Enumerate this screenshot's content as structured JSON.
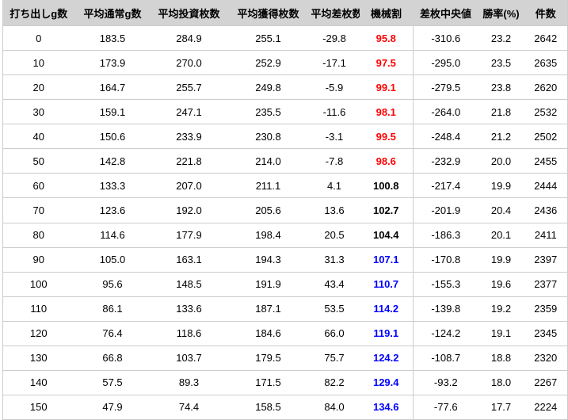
{
  "chart_data": {
    "type": "table",
    "title": "",
    "columns": [
      "打ち出しg数",
      "平均通常g数",
      "平均投資枚数",
      "平均獲得枚数",
      "平均差枚数",
      "機械割",
      "差枚中央値",
      "勝率(%)",
      "件数"
    ],
    "column_keys": [
      "g-start",
      "avg-normal-g",
      "avg-invest-coins",
      "avg-payout-coins",
      "avg-diff-coins",
      "kikaiwari",
      "diff-median",
      "win-rate",
      "count"
    ],
    "rows": [
      {
        "cells": [
          "0",
          "183.5",
          "284.9",
          "255.1",
          "-29.8",
          "95.8",
          "-310.6",
          "23.2",
          "2642"
        ],
        "kikaiwari_color": "red"
      },
      {
        "cells": [
          "10",
          "173.9",
          "270.0",
          "252.9",
          "-17.1",
          "97.5",
          "-295.0",
          "23.5",
          "2635"
        ],
        "kikaiwari_color": "red"
      },
      {
        "cells": [
          "20",
          "164.7",
          "255.7",
          "249.8",
          "-5.9",
          "99.1",
          "-279.5",
          "23.8",
          "2620"
        ],
        "kikaiwari_color": "red"
      },
      {
        "cells": [
          "30",
          "159.1",
          "247.1",
          "235.5",
          "-11.6",
          "98.1",
          "-264.0",
          "21.8",
          "2532"
        ],
        "kikaiwari_color": "red"
      },
      {
        "cells": [
          "40",
          "150.6",
          "233.9",
          "230.8",
          "-3.1",
          "99.5",
          "-248.4",
          "21.2",
          "2502"
        ],
        "kikaiwari_color": "red"
      },
      {
        "cells": [
          "50",
          "142.8",
          "221.8",
          "214.0",
          "-7.8",
          "98.6",
          "-232.9",
          "20.0",
          "2455"
        ],
        "kikaiwari_color": "red"
      },
      {
        "cells": [
          "60",
          "133.3",
          "207.0",
          "211.1",
          "4.1",
          "100.8",
          "-217.4",
          "19.9",
          "2444"
        ],
        "kikaiwari_color": "black"
      },
      {
        "cells": [
          "70",
          "123.6",
          "192.0",
          "205.6",
          "13.6",
          "102.7",
          "-201.9",
          "20.4",
          "2436"
        ],
        "kikaiwari_color": "black"
      },
      {
        "cells": [
          "80",
          "114.6",
          "177.9",
          "198.4",
          "20.5",
          "104.4",
          "-186.3",
          "20.1",
          "2411"
        ],
        "kikaiwari_color": "black"
      },
      {
        "cells": [
          "90",
          "105.0",
          "163.1",
          "194.3",
          "31.3",
          "107.1",
          "-170.8",
          "19.9",
          "2397"
        ],
        "kikaiwari_color": "blue"
      },
      {
        "cells": [
          "100",
          "95.6",
          "148.5",
          "191.9",
          "43.4",
          "110.7",
          "-155.3",
          "19.6",
          "2377"
        ],
        "kikaiwari_color": "blue"
      },
      {
        "cells": [
          "110",
          "86.1",
          "133.6",
          "187.1",
          "53.5",
          "114.2",
          "-139.8",
          "19.2",
          "2359"
        ],
        "kikaiwari_color": "blue"
      },
      {
        "cells": [
          "120",
          "76.4",
          "118.6",
          "184.6",
          "66.0",
          "119.1",
          "-124.2",
          "19.1",
          "2345"
        ],
        "kikaiwari_color": "blue"
      },
      {
        "cells": [
          "130",
          "66.8",
          "103.7",
          "179.5",
          "75.7",
          "124.2",
          "-108.7",
          "18.8",
          "2320"
        ],
        "kikaiwari_color": "blue"
      },
      {
        "cells": [
          "140",
          "57.5",
          "89.3",
          "171.5",
          "82.2",
          "129.4",
          "-93.2",
          "18.0",
          "2267"
        ],
        "kikaiwari_color": "blue"
      },
      {
        "cells": [
          "150",
          "47.9",
          "74.4",
          "158.5",
          "84.0",
          "134.6",
          "-77.6",
          "17.7",
          "2224"
        ],
        "kikaiwari_color": "blue"
      }
    ],
    "legend": "off",
    "grid": "horizontal-row-separators"
  },
  "colors": {
    "kikaiwari_negative": "#ff0000",
    "kikaiwari_positive_high": "#0000ff",
    "kikaiwari_neutral": "#000000",
    "header_bg": "#d3d3d3",
    "border": "#cccccc",
    "text": "#000000",
    "row_bg": "#ffffff"
  }
}
